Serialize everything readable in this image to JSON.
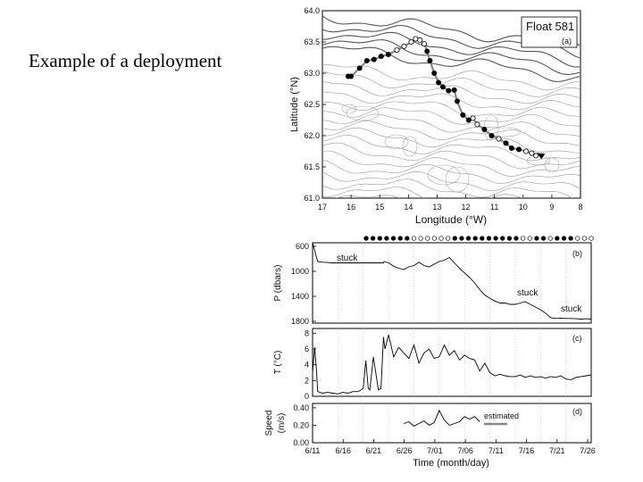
{
  "slide": {
    "title": "Example of a deployment"
  },
  "chart_data": [
    {
      "type": "map",
      "panel_label": "(a)",
      "legend_title": "Float 581",
      "xlabel": "Longitude (°W)",
      "ylabel": "Latitude (°N)",
      "x_ticks": [
        "17",
        "16",
        "15",
        "14",
        "13",
        "12",
        "11",
        "10",
        "9",
        "8"
      ],
      "y_ticks": [
        "64.0",
        "63.5",
        "63.0",
        "62.5",
        "62.0",
        "61.5",
        "61.0"
      ],
      "xlim": [
        17,
        8
      ],
      "ylim": [
        61.0,
        64.0
      ],
      "track": {
        "lon": [
          16.1,
          16.0,
          15.7,
          15.45,
          15.2,
          14.95,
          14.7,
          14.4,
          14.15,
          13.9,
          13.75,
          13.6,
          13.45,
          13.35,
          13.25,
          13.1,
          12.95,
          12.8,
          12.6,
          12.4,
          12.3,
          12.1,
          11.9,
          11.75,
          11.6,
          11.35,
          11.1,
          10.85,
          10.6,
          10.4,
          10.15,
          9.9,
          9.7,
          9.55
        ],
        "lat": [
          62.95,
          62.95,
          63.08,
          63.2,
          63.22,
          63.27,
          63.3,
          63.37,
          63.43,
          63.5,
          63.55,
          63.53,
          63.47,
          63.35,
          63.2,
          63.0,
          62.85,
          62.78,
          62.72,
          62.73,
          62.55,
          62.33,
          62.25,
          62.28,
          62.18,
          62.1,
          62.0,
          61.95,
          61.88,
          61.8,
          61.78,
          61.75,
          61.72,
          61.68
        ],
        "filled": [
          true,
          true,
          true,
          true,
          true,
          true,
          true,
          false,
          false,
          false,
          false,
          false,
          false,
          true,
          true,
          true,
          true,
          true,
          true,
          true,
          true,
          true,
          true,
          false,
          false,
          true,
          true,
          false,
          true,
          true,
          true,
          false,
          false,
          false
        ]
      }
    },
    {
      "type": "line",
      "panel_label": "(b)",
      "ylabel": "P (dbars)",
      "y_ticks": [
        "600",
        "1000",
        "1400",
        "1800"
      ],
      "ylim": [
        1800,
        600
      ],
      "annotations": [
        "stuck",
        "stuck",
        "stuck"
      ],
      "days": [
        0,
        1,
        2,
        3,
        3.8,
        4,
        5,
        6,
        8,
        10,
        12,
        13,
        14,
        14.1,
        15,
        16,
        17,
        18,
        19,
        20,
        21,
        22,
        23,
        24,
        25,
        26,
        27,
        28,
        29,
        30,
        31,
        32,
        33,
        34,
        35,
        36,
        37,
        38,
        39,
        40,
        41,
        42,
        43,
        44,
        45,
        46,
        47,
        48,
        49,
        50,
        51,
        52,
        53,
        54,
        55
      ],
      "values": [
        600,
        880,
        890,
        895,
        900,
        900,
        900,
        900,
        900,
        900,
        900,
        900,
        900,
        880,
        900,
        950,
        980,
        1000,
        960,
        940,
        890,
        940,
        960,
        920,
        880,
        860,
        820,
        900,
        980,
        1050,
        1120,
        1200,
        1300,
        1380,
        1430,
        1470,
        1500,
        1500,
        1520,
        1520,
        1500,
        1480,
        1520,
        1560,
        1600,
        1650,
        1720,
        1730,
        1725,
        1730,
        1730,
        1735,
        1740,
        1735,
        1740
      ]
    },
    {
      "type": "line",
      "panel_label": "(c)",
      "ylabel": "T (°C)",
      "y_ticks": [
        "0",
        "2",
        "4",
        "6",
        "8"
      ],
      "ylim": [
        0,
        8.6
      ],
      "days": [
        0,
        0.4,
        0.8,
        1,
        2,
        3,
        4,
        5,
        6,
        7,
        8,
        9,
        10,
        10.5,
        11,
        11.3,
        12,
        13,
        13.5,
        14,
        14.3,
        15,
        16,
        17,
        18,
        19,
        20,
        21,
        22,
        23,
        24,
        25,
        26,
        27,
        28,
        29,
        30,
        31,
        32,
        33,
        34,
        35,
        36,
        37,
        38,
        39,
        40,
        41,
        42,
        43,
        44,
        45,
        46,
        47,
        48,
        49,
        50,
        51,
        52,
        53,
        54,
        55
      ],
      "values": [
        3.0,
        6.2,
        3.2,
        0.6,
        0.4,
        0.5,
        0.4,
        0.3,
        0.5,
        0.4,
        0.6,
        0.6,
        1.0,
        4.5,
        1.0,
        0.8,
        5.0,
        0.8,
        1.0,
        7.5,
        6.0,
        7.8,
        5.0,
        6.2,
        5.5,
        4.8,
        6.5,
        4.2,
        5.5,
        6.0,
        4.8,
        5.0,
        6.5,
        5.2,
        5.8,
        4.6,
        5.2,
        4.8,
        4.6,
        3.2,
        4.2,
        3.0,
        2.6,
        2.8,
        2.6,
        2.5,
        2.5,
        2.7,
        2.4,
        2.6,
        2.4,
        2.5,
        2.3,
        2.5,
        2.4,
        2.6,
        2.2,
        2.1,
        2.4,
        2.5,
        2.6,
        2.7
      ]
    },
    {
      "type": "line",
      "panel_label": "(d)",
      "ylabel": "Speed (m/s)",
      "y_ticks": [
        "0.00",
        "0.20",
        "0.40"
      ],
      "ylim": [
        0,
        0.45
      ],
      "xlabel": "Time (month/day)",
      "x_ticks": [
        "6/11",
        "6/16",
        "6/21",
        "6/26",
        "7/01",
        "7/06",
        "7/11",
        "7/16",
        "7/21",
        "7/26"
      ],
      "legend": "estimated",
      "days": [
        18,
        19,
        20,
        21,
        22,
        23,
        24,
        25,
        26,
        27,
        28,
        29,
        30,
        31,
        32,
        33
      ],
      "values": [
        0.22,
        0.24,
        0.19,
        0.22,
        0.25,
        0.2,
        0.23,
        0.37,
        0.26,
        0.2,
        0.22,
        0.24,
        0.3,
        0.27,
        0.3,
        0.24
      ]
    }
  ]
}
